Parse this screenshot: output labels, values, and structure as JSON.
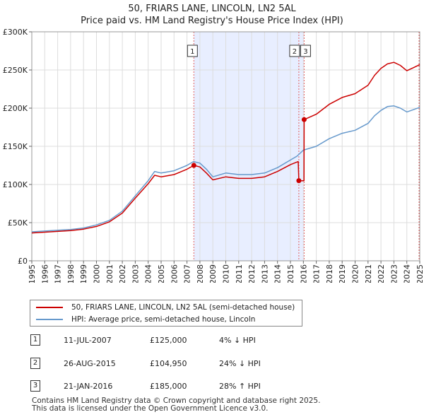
{
  "title": "50, FRIARS LANE, LINCOLN, LN2 5AL",
  "subtitle": "Price paid vs. HM Land Registry's House Price Index (HPI)",
  "colors": {
    "property": "#cc0000",
    "hpi": "#6699cc",
    "shade": "#e8eeff",
    "marker": "#e06060"
  },
  "legend": {
    "property_label": "50, FRIARS LANE, LINCOLN, LN2 5AL (semi-detached house)",
    "hpi_label": "HPI: Average price, semi-detached house, Lincoln"
  },
  "transactions": [
    {
      "num": "1",
      "date": "11-JUL-2007",
      "price": "£125,000",
      "hpi": "4% ↓ HPI"
    },
    {
      "num": "2",
      "date": "26-AUG-2015",
      "price": "£104,950",
      "hpi": "24% ↓ HPI"
    },
    {
      "num": "3",
      "date": "21-JAN-2016",
      "price": "£185,000",
      "hpi": "28% ↑ HPI"
    }
  ],
  "footer": {
    "line1": "Contains HM Land Registry data © Crown copyright and database right 2025.",
    "line2": "This data is licensed under the Open Government Licence v3.0."
  },
  "chart_data": {
    "type": "line",
    "xlim": [
      1995,
      2025
    ],
    "ylim": [
      0,
      300000
    ],
    "yticks": [
      0,
      50000,
      100000,
      150000,
      200000,
      250000,
      300000
    ],
    "ytick_labels": [
      "£0",
      "£50K",
      "£100K",
      "£150K",
      "£200K",
      "£250K",
      "£300K"
    ],
    "xticks": [
      1995,
      1996,
      1997,
      1998,
      1999,
      2000,
      2001,
      2002,
      2003,
      2004,
      2005,
      2006,
      2007,
      2008,
      2009,
      2010,
      2011,
      2012,
      2013,
      2014,
      2015,
      2016,
      2017,
      2018,
      2019,
      2020,
      2021,
      2022,
      2023,
      2024,
      2025
    ],
    "shaded_range": [
      2007.53,
      2016.05
    ],
    "series": [
      {
        "name": "HPI: Average price, semi-detached house, Lincoln",
        "points": [
          [
            1995.0,
            38000
          ],
          [
            1996.0,
            39000
          ],
          [
            1997.0,
            40000
          ],
          [
            1998.0,
            41000
          ],
          [
            1999.0,
            43000
          ],
          [
            2000.0,
            47000
          ],
          [
            2001.0,
            53000
          ],
          [
            2002.0,
            65000
          ],
          [
            2003.0,
            85000
          ],
          [
            2004.0,
            105000
          ],
          [
            2004.5,
            117000
          ],
          [
            2005.0,
            115000
          ],
          [
            2006.0,
            118000
          ],
          [
            2007.0,
            125000
          ],
          [
            2007.5,
            130000
          ],
          [
            2008.0,
            128000
          ],
          [
            2008.5,
            120000
          ],
          [
            2009.0,
            110000
          ],
          [
            2010.0,
            115000
          ],
          [
            2011.0,
            113000
          ],
          [
            2012.0,
            113000
          ],
          [
            2013.0,
            115000
          ],
          [
            2014.0,
            122000
          ],
          [
            2015.0,
            132000
          ],
          [
            2015.5,
            137000
          ],
          [
            2016.0,
            145000
          ],
          [
            2017.0,
            150000
          ],
          [
            2018.0,
            160000
          ],
          [
            2019.0,
            167000
          ],
          [
            2020.0,
            171000
          ],
          [
            2021.0,
            180000
          ],
          [
            2021.5,
            190000
          ],
          [
            2022.0,
            197000
          ],
          [
            2022.5,
            202000
          ],
          [
            2023.0,
            203000
          ],
          [
            2023.5,
            200000
          ],
          [
            2024.0,
            195000
          ],
          [
            2024.5,
            198000
          ],
          [
            2025.0,
            201000
          ]
        ]
      },
      {
        "name": "50, FRIARS LANE, LINCOLN, LN2 5AL (semi-detached house)",
        "points": [
          [
            1995.0,
            36500
          ],
          [
            1996.0,
            37500
          ],
          [
            1997.0,
            38500
          ],
          [
            1998.0,
            39500
          ],
          [
            1999.0,
            41500
          ],
          [
            2000.0,
            45000
          ],
          [
            2001.0,
            51000
          ],
          [
            2002.0,
            62500
          ],
          [
            2003.0,
            82000
          ],
          [
            2004.0,
            101000
          ],
          [
            2004.5,
            112000
          ],
          [
            2005.0,
            110000
          ],
          [
            2006.0,
            113000
          ],
          [
            2007.0,
            120000
          ],
          [
            2007.53,
            125000
          ],
          [
            2008.0,
            123000
          ],
          [
            2008.5,
            115000
          ],
          [
            2009.0,
            106000
          ],
          [
            2010.0,
            110000
          ],
          [
            2011.0,
            108000
          ],
          [
            2012.0,
            108000
          ],
          [
            2013.0,
            110000
          ],
          [
            2014.0,
            117000
          ],
          [
            2015.0,
            126000
          ],
          [
            2015.6,
            130000
          ],
          [
            2015.65,
            104950
          ],
          [
            2016.05,
            104950
          ],
          [
            2016.06,
            185000
          ],
          [
            2017.0,
            192000
          ],
          [
            2018.0,
            205000
          ],
          [
            2019.0,
            214000
          ],
          [
            2020.0,
            219000
          ],
          [
            2021.0,
            230000
          ],
          [
            2021.5,
            243000
          ],
          [
            2022.0,
            252000
          ],
          [
            2022.5,
            258000
          ],
          [
            2023.0,
            260000
          ],
          [
            2023.5,
            256000
          ],
          [
            2024.0,
            249000
          ],
          [
            2024.5,
            253000
          ],
          [
            2025.0,
            257000
          ]
        ]
      }
    ],
    "sales": [
      {
        "label": "1",
        "x": 2007.53,
        "y": 125000
      },
      {
        "label": "2",
        "x": 2015.65,
        "y": 104950
      },
      {
        "label": "3",
        "x": 2016.06,
        "y": 185000
      }
    ]
  }
}
